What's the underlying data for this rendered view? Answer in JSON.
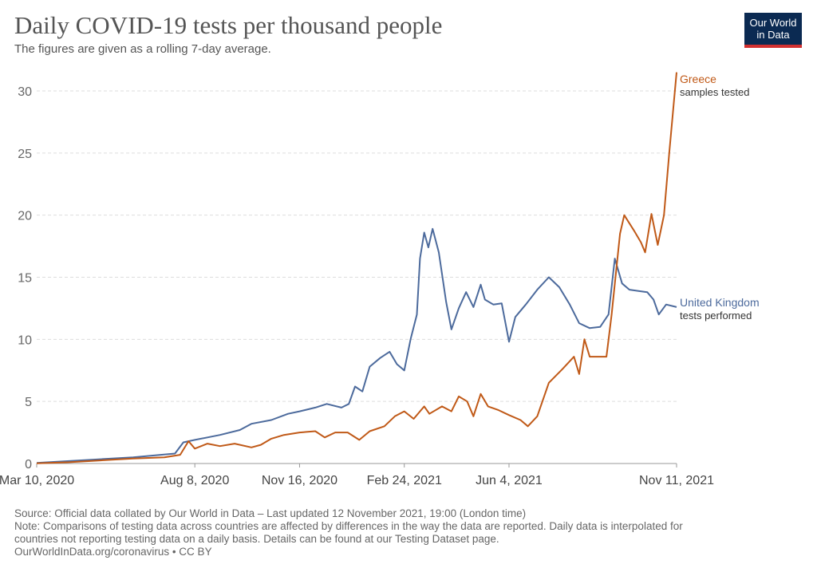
{
  "header": {
    "title": "Daily COVID-19 tests per thousand people",
    "subtitle": "The figures are given as a rolling 7-day average.",
    "logo_line1": "Our World",
    "logo_line2": "in Data"
  },
  "footer": {
    "source": "Source: Official data collated by Our World in Data – Last updated 12 November 2021, 19:00 (London time)",
    "note_line1": "Note: Comparisons of testing data across countries are affected by differences in the way the data are reported. Daily data is interpolated for",
    "note_line2": "countries not reporting testing data on a daily basis. Details can be found at our Testing Dataset page.",
    "credit": "OurWorldInData.org/coronavirus • CC BY"
  },
  "colors": {
    "greece": "#c05917",
    "uk": "#4c6a9c",
    "grid": "#dddddd",
    "axis": "#999999"
  },
  "chart_data": {
    "type": "line",
    "title": "Daily COVID-19 tests per thousand people",
    "subtitle": "The figures are given as a rolling 7-day average.",
    "ylim": [
      0,
      32
    ],
    "yticks": [
      0,
      5,
      10,
      15,
      20,
      25,
      30
    ],
    "xlim": [
      "2020-03-10",
      "2021-11-11"
    ],
    "xticks": [
      {
        "date": "2020-03-10",
        "label": "Mar 10, 2020"
      },
      {
        "date": "2020-08-08",
        "label": "Aug 8, 2020"
      },
      {
        "date": "2020-11-16",
        "label": "Nov 16, 2020"
      },
      {
        "date": "2021-02-24",
        "label": "Feb 24, 2021"
      },
      {
        "date": "2021-06-04",
        "label": "Jun 4, 2021"
      },
      {
        "date": "2021-11-11",
        "label": "Nov 11, 2021"
      }
    ],
    "grid": true,
    "series": [
      {
        "name": "United Kingdom",
        "sublabel": "tests performed",
        "color": "#4c6a9c",
        "points": [
          [
            "2020-03-10",
            0.05
          ],
          [
            "2020-04-10",
            0.2
          ],
          [
            "2020-05-10",
            0.35
          ],
          [
            "2020-06-10",
            0.5
          ],
          [
            "2020-07-20",
            0.8
          ],
          [
            "2020-07-28",
            1.7
          ],
          [
            "2020-08-08",
            1.9
          ],
          [
            "2020-09-01",
            2.3
          ],
          [
            "2020-09-20",
            2.7
          ],
          [
            "2020-10-01",
            3.2
          ],
          [
            "2020-10-20",
            3.5
          ],
          [
            "2020-11-05",
            4.0
          ],
          [
            "2020-11-16",
            4.2
          ],
          [
            "2020-12-01",
            4.5
          ],
          [
            "2020-12-12",
            4.8
          ],
          [
            "2020-12-26",
            4.5
          ],
          [
            "2021-01-02",
            4.8
          ],
          [
            "2021-01-08",
            6.2
          ],
          [
            "2021-01-15",
            5.8
          ],
          [
            "2021-01-22",
            7.8
          ],
          [
            "2021-02-01",
            8.5
          ],
          [
            "2021-02-10",
            9.0
          ],
          [
            "2021-02-17",
            8.0
          ],
          [
            "2021-02-24",
            7.5
          ],
          [
            "2021-03-02",
            10.0
          ],
          [
            "2021-03-08",
            12.0
          ],
          [
            "2021-03-11",
            16.5
          ],
          [
            "2021-03-15",
            18.6
          ],
          [
            "2021-03-19",
            17.4
          ],
          [
            "2021-03-23",
            18.9
          ],
          [
            "2021-03-29",
            17.0
          ],
          [
            "2021-04-05",
            13.0
          ],
          [
            "2021-04-10",
            10.8
          ],
          [
            "2021-04-17",
            12.5
          ],
          [
            "2021-04-24",
            13.8
          ],
          [
            "2021-05-01",
            12.6
          ],
          [
            "2021-05-08",
            14.4
          ],
          [
            "2021-05-12",
            13.2
          ],
          [
            "2021-05-20",
            12.8
          ],
          [
            "2021-05-28",
            12.9
          ],
          [
            "2021-06-04",
            9.8
          ],
          [
            "2021-06-10",
            11.8
          ],
          [
            "2021-06-20",
            12.8
          ],
          [
            "2021-07-01",
            14.0
          ],
          [
            "2021-07-12",
            15.0
          ],
          [
            "2021-07-22",
            14.2
          ],
          [
            "2021-08-01",
            12.8
          ],
          [
            "2021-08-10",
            11.3
          ],
          [
            "2021-08-20",
            10.9
          ],
          [
            "2021-08-30",
            11.0
          ],
          [
            "2021-09-07",
            12.0
          ],
          [
            "2021-09-13",
            16.5
          ],
          [
            "2021-09-20",
            14.5
          ],
          [
            "2021-09-27",
            14.0
          ],
          [
            "2021-10-05",
            13.9
          ],
          [
            "2021-10-14",
            13.8
          ],
          [
            "2021-10-20",
            13.2
          ],
          [
            "2021-10-25",
            12.0
          ],
          [
            "2021-11-01",
            12.8
          ],
          [
            "2021-11-11",
            12.6
          ]
        ]
      },
      {
        "name": "Greece",
        "sublabel": "samples tested",
        "color": "#c05917",
        "points": [
          [
            "2020-03-10",
            0.02
          ],
          [
            "2020-04-10",
            0.1
          ],
          [
            "2020-05-10",
            0.25
          ],
          [
            "2020-06-10",
            0.4
          ],
          [
            "2020-07-10",
            0.5
          ],
          [
            "2020-07-25",
            0.7
          ],
          [
            "2020-08-02",
            1.8
          ],
          [
            "2020-08-08",
            1.2
          ],
          [
            "2020-08-20",
            1.6
          ],
          [
            "2020-09-01",
            1.4
          ],
          [
            "2020-09-15",
            1.6
          ],
          [
            "2020-10-01",
            1.3
          ],
          [
            "2020-10-10",
            1.5
          ],
          [
            "2020-10-20",
            2.0
          ],
          [
            "2020-11-01",
            2.3
          ],
          [
            "2020-11-16",
            2.5
          ],
          [
            "2020-12-01",
            2.6
          ],
          [
            "2020-12-10",
            2.1
          ],
          [
            "2020-12-20",
            2.5
          ],
          [
            "2021-01-01",
            2.5
          ],
          [
            "2021-01-12",
            1.9
          ],
          [
            "2021-01-22",
            2.6
          ],
          [
            "2021-02-05",
            3.0
          ],
          [
            "2021-02-15",
            3.8
          ],
          [
            "2021-02-24",
            4.2
          ],
          [
            "2021-03-05",
            3.6
          ],
          [
            "2021-03-15",
            4.6
          ],
          [
            "2021-03-20",
            4.0
          ],
          [
            "2021-04-01",
            4.6
          ],
          [
            "2021-04-10",
            4.2
          ],
          [
            "2021-04-17",
            5.4
          ],
          [
            "2021-04-25",
            5.0
          ],
          [
            "2021-05-01",
            3.8
          ],
          [
            "2021-05-08",
            5.6
          ],
          [
            "2021-05-15",
            4.6
          ],
          [
            "2021-05-25",
            4.3
          ],
          [
            "2021-06-04",
            3.9
          ],
          [
            "2021-06-15",
            3.5
          ],
          [
            "2021-06-22",
            3.0
          ],
          [
            "2021-07-01",
            3.8
          ],
          [
            "2021-07-12",
            6.5
          ],
          [
            "2021-07-25",
            7.6
          ],
          [
            "2021-08-05",
            8.6
          ],
          [
            "2021-08-10",
            7.2
          ],
          [
            "2021-08-15",
            10.0
          ],
          [
            "2021-08-20",
            8.6
          ],
          [
            "2021-09-05",
            8.6
          ],
          [
            "2021-09-10",
            12.0
          ],
          [
            "2021-09-18",
            18.5
          ],
          [
            "2021-09-22",
            20.0
          ],
          [
            "2021-10-01",
            18.8
          ],
          [
            "2021-10-08",
            17.8
          ],
          [
            "2021-10-12",
            17.0
          ],
          [
            "2021-10-18",
            20.1
          ],
          [
            "2021-10-24",
            17.6
          ],
          [
            "2021-10-30",
            20.0
          ],
          [
            "2021-11-04",
            25.0
          ],
          [
            "2021-11-11",
            31.5
          ]
        ]
      }
    ]
  }
}
